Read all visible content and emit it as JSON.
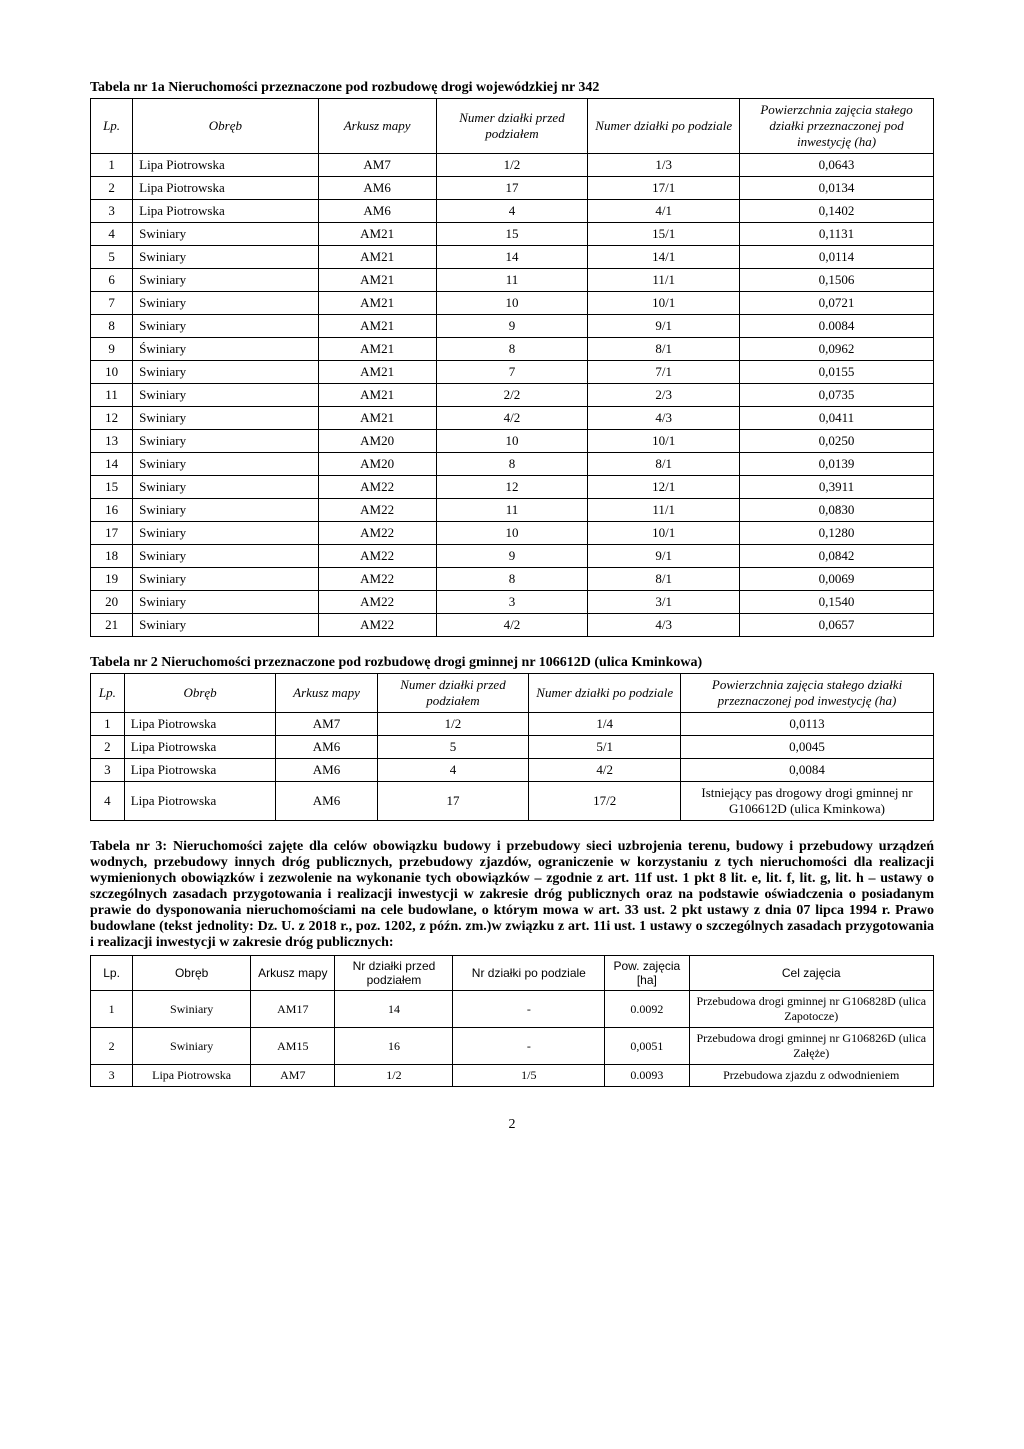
{
  "table1": {
    "title": "Tabela nr 1a Nieruchomości przeznaczone pod rozbudowę drogi wojewódzkiej nr 342",
    "headers": {
      "lp": "Lp.",
      "obreb": "Obręb",
      "arkusz": "Arkusz mapy",
      "num_przed": "Numer działki przed podziałem",
      "num_po": "Numer działki po podziale",
      "pow": "Powierzchnia zajęcia stałego działki przeznaczonej pod inwestycję (ha)"
    },
    "rows": [
      {
        "lp": "1",
        "obreb": "Lipa Piotrowska",
        "arkusz": "AM7",
        "n1": "1/2",
        "n2": "1/3",
        "pow": "0,0643"
      },
      {
        "lp": "2",
        "obreb": "Lipa Piotrowska",
        "arkusz": "AM6",
        "n1": "17",
        "n2": "17/1",
        "pow": "0,0134"
      },
      {
        "lp": "3",
        "obreb": "Lipa Piotrowska",
        "arkusz": "AM6",
        "n1": "4",
        "n2": "4/1",
        "pow": "0,1402"
      },
      {
        "lp": "4",
        "obreb": "Swiniary",
        "arkusz": "AM21",
        "n1": "15",
        "n2": "15/1",
        "pow": "0,1131"
      },
      {
        "lp": "5",
        "obreb": "Swiniary",
        "arkusz": "AM21",
        "n1": "14",
        "n2": "14/1",
        "pow": "0,0114"
      },
      {
        "lp": "6",
        "obreb": "Swiniary",
        "arkusz": "AM21",
        "n1": "11",
        "n2": "11/1",
        "pow": "0,1506"
      },
      {
        "lp": "7",
        "obreb": "Swiniary",
        "arkusz": "AM21",
        "n1": "10",
        "n2": "10/1",
        "pow": "0,0721"
      },
      {
        "lp": "8",
        "obreb": "Swiniary",
        "arkusz": "AM21",
        "n1": "9",
        "n2": "9/1",
        "pow": "0.0084"
      },
      {
        "lp": "9",
        "obreb": "Świniary",
        "arkusz": "AM21",
        "n1": "8",
        "n2": "8/1",
        "pow": "0,0962"
      },
      {
        "lp": "10",
        "obreb": "Swiniary",
        "arkusz": "AM21",
        "n1": "7",
        "n2": "7/1",
        "pow": "0,0155"
      },
      {
        "lp": "11",
        "obreb": "Swiniary",
        "arkusz": "AM21",
        "n1": "2/2",
        "n2": "2/3",
        "pow": "0,0735"
      },
      {
        "lp": "12",
        "obreb": "Swiniary",
        "arkusz": "AM21",
        "n1": "4/2",
        "n2": "4/3",
        "pow": "0,0411"
      },
      {
        "lp": "13",
        "obreb": "Swiniary",
        "arkusz": "AM20",
        "n1": "10",
        "n2": "10/1",
        "pow": "0,0250"
      },
      {
        "lp": "14",
        "obreb": "Swiniary",
        "arkusz": "AM20",
        "n1": "8",
        "n2": "8/1",
        "pow": "0,0139"
      },
      {
        "lp": "15",
        "obreb": "Swiniary",
        "arkusz": "AM22",
        "n1": "12",
        "n2": "12/1",
        "pow": "0,3911"
      },
      {
        "lp": "16",
        "obreb": "Swiniary",
        "arkusz": "AM22",
        "n1": "11",
        "n2": "11/1",
        "pow": "0,0830"
      },
      {
        "lp": "17",
        "obreb": "Swiniary",
        "arkusz": "AM22",
        "n1": "10",
        "n2": "10/1",
        "pow": "0,1280"
      },
      {
        "lp": "18",
        "obreb": "Swiniary",
        "arkusz": "AM22",
        "n1": "9",
        "n2": "9/1",
        "pow": "0,0842"
      },
      {
        "lp": "19",
        "obreb": "Swiniary",
        "arkusz": "AM22",
        "n1": "8",
        "n2": "8/1",
        "pow": "0,0069"
      },
      {
        "lp": "20",
        "obreb": "Swiniary",
        "arkusz": "AM22",
        "n1": "3",
        "n2": "3/1",
        "pow": "0,1540"
      },
      {
        "lp": "21",
        "obreb": "Swiniary",
        "arkusz": "AM22",
        "n1": "4/2",
        "n2": "4/3",
        "pow": "0,0657"
      }
    ]
  },
  "table2": {
    "title": "Tabela nr 2 Nieruchomości przeznaczone pod rozbudowę drogi gminnej nr 106612D (ulica Kminkowa)",
    "headers": {
      "lp": "Lp.",
      "obreb": "Obręb",
      "arkusz": "Arkusz mapy",
      "num_przed": "Numer działki przed podziałem",
      "num_po": "Numer działki po podziale",
      "pow": "Powierzchnia zajęcia stałego działki przeznaczonej pod inwestycję (ha)"
    },
    "rows": [
      {
        "lp": "1",
        "obreb": "Lipa Piotrowska",
        "arkusz": "AM7",
        "n1": "1/2",
        "n2": "1/4",
        "pow": "0,0113"
      },
      {
        "lp": "2",
        "obreb": "Lipa Piotrowska",
        "arkusz": "AM6",
        "n1": "5",
        "n2": "5/1",
        "pow": "0,0045"
      },
      {
        "lp": "3",
        "obreb": "Lipa Piotrowska",
        "arkusz": "AM6",
        "n1": "4",
        "n2": "4/2",
        "pow": "0,0084"
      },
      {
        "lp": "4",
        "obreb": "Lipa Piotrowska",
        "arkusz": "AM6",
        "n1": "17",
        "n2": "17/2",
        "pow": "Istniejący pas drogowy drogi gminnej nr G106612D (ulica Kminkowa)"
      }
    ]
  },
  "paragraph": "Tabela nr 3: Nieruchomości zajęte dla celów obowiązku budowy i przebudowy sieci uzbrojenia terenu, budowy i przebudowy urządzeń wodnych, przebudowy innych dróg publicznych, przebudowy zjazdów, ograniczenie w korzystaniu z tych nieruchomości dla realizacji wymienionych obowiązków i zezwolenie na wykonanie tych obowiązków – zgodnie z art. 11f ust. 1 pkt 8 lit. e, lit. f, lit. g, lit. h – ustawy o szczególnych zasadach przygotowania i realizacji inwestycji w zakresie dróg publicznych oraz na podstawie oświadczenia o posiadanym prawie do dysponowania nieruchomościami na cele budowlane, o którym mowa w art. 33 ust. 2 pkt ustawy z dnia 07 lipca 1994 r. Prawo budowlane (tekst jednolity: Dz. U. z 2018 r., poz. 1202, z późn. zm.)w związku z art. 11i ust. 1 ustawy o szczególnych zasadach przygotowania i realizacji inwestycji w zakresie dróg publicznych:",
  "table3": {
    "headers": {
      "lp": "Lp.",
      "obreb": "Obręb",
      "arkusz": "Arkusz mapy",
      "nr_przed": "Nr działki przed podziałem",
      "nr_po": "Nr działki po podziale",
      "pow": "Pow. zajęcia [ha]",
      "cel": "Cel zajęcia"
    },
    "rows": [
      {
        "lp": "1",
        "obreb": "Swiniary",
        "arkusz": "AM17",
        "n1": "14",
        "n2": "-",
        "pow": "0.0092",
        "cel": "Przebudowa drogi gminnej nr G106828D (ulica Zapotocze)"
      },
      {
        "lp": "2",
        "obreb": "Swiniary",
        "arkusz": "AM15",
        "n1": "16",
        "n2": "-",
        "pow": "0,0051",
        "cel": "Przebudowa drogi gminnej nr G106826D (ulica Załęże)"
      },
      {
        "lp": "3",
        "obreb": "Lipa Piotrowska",
        "arkusz": "AM7",
        "n1": "1/2",
        "n2": "1/5",
        "pow": "0.0093",
        "cel": "Przebudowa zjazdu z odwodnieniem"
      }
    ]
  },
  "page_number": "2"
}
